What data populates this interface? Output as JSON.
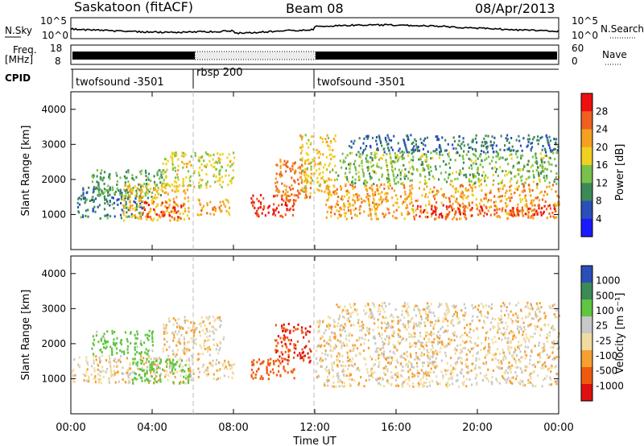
{
  "header": {
    "station": "Saskatoon (fitACF)",
    "beam": "Beam 08",
    "date": "08/Apr/2013"
  },
  "top_panels": {
    "nsky_label": "N.Sky",
    "nsky_ticks": [
      "10^5",
      "10^0"
    ],
    "nsearch_label": "N.Search",
    "nsearch_ticks": [
      "10^5",
      "10^0"
    ],
    "freq_label": "Freq.",
    "freq_unit": "[MHz]",
    "freq_ticks": [
      "18",
      "8"
    ],
    "nave_label": "Nave",
    "nave_ticks": [
      "60",
      "0"
    ],
    "cpid_label": "CPID",
    "cpid_segments": [
      {
        "label": "twofsound -3501",
        "start_h": 0,
        "end_h": 6
      },
      {
        "label": "rbsp 200",
        "start_h": 6,
        "end_h": 12
      },
      {
        "label": "twofsound -3501",
        "start_h": 12,
        "end_h": 24
      }
    ]
  },
  "xaxis": {
    "title": "Time UT",
    "ticks": [
      "00:00",
      "04:00",
      "08:00",
      "12:00",
      "16:00",
      "20:00",
      "00:00"
    ]
  },
  "colors": {
    "power": [
      "#1a1aff",
      "#2a4fb8",
      "#3c8a58",
      "#79c14a",
      "#f0d020",
      "#f5a020",
      "#f06020",
      "#ee1010"
    ],
    "velocity": [
      "#e01010",
      "#f05a10",
      "#f5a030",
      "#f0dca0",
      "#c8c8c8",
      "#5ec640",
      "#3c8a58",
      "#2a4fb8"
    ]
  },
  "chart_data": [
    {
      "type": "heatmap",
      "ylabel": "Slant Range [km]",
      "xlabel": "Time UT",
      "xlim": [
        0,
        24
      ],
      "ylim": [
        0,
        4500
      ],
      "yticks": [
        1000,
        2000,
        3000,
        4000
      ],
      "colorbar": {
        "label": "Power [dB]",
        "ticks": [
          "28",
          "24",
          "20",
          "16",
          "12",
          "8",
          "4"
        ],
        "range": [
          0,
          32
        ]
      },
      "regions": [
        {
          "t": [
            0.3,
            3.5
          ],
          "r": [
            900,
            1800
          ],
          "v": 9
        },
        {
          "t": [
            1.0,
            4.5
          ],
          "r": [
            1500,
            2300
          ],
          "v": 12
        },
        {
          "t": [
            2.5,
            5.8
          ],
          "r": [
            850,
            1900
          ],
          "v": 20
        },
        {
          "t": [
            3.5,
            5.5
          ],
          "r": [
            900,
            1400
          ],
          "v": 27
        },
        {
          "t": [
            4.5,
            8.0
          ],
          "r": [
            1800,
            2800
          ],
          "v": 17
        },
        {
          "t": [
            6.2,
            7.8
          ],
          "r": [
            1000,
            1500
          ],
          "v": 22
        },
        {
          "t": [
            8.8,
            11.0
          ],
          "r": [
            950,
            1600
          ],
          "v": 29
        },
        {
          "t": [
            10.0,
            11.8
          ],
          "r": [
            1400,
            2600
          ],
          "v": 24
        },
        {
          "t": [
            11.2,
            13.0
          ],
          "r": [
            1600,
            3300
          ],
          "v": 19
        },
        {
          "t": [
            12.5,
            24.0
          ],
          "r": [
            900,
            1900
          ],
          "v": 22
        },
        {
          "t": [
            13.0,
            24.0
          ],
          "r": [
            1900,
            2800
          ],
          "v": 14
        },
        {
          "t": [
            13.5,
            24.0
          ],
          "r": [
            2800,
            3300
          ],
          "v": 8
        },
        {
          "t": [
            17.0,
            24.0
          ],
          "r": [
            950,
            1300
          ],
          "v": 28
        }
      ]
    },
    {
      "type": "heatmap",
      "ylabel": "Slant Range [km]",
      "xlabel": "Time UT",
      "xlim": [
        0,
        24
      ],
      "ylim": [
        0,
        4500
      ],
      "yticks": [
        1000,
        2000,
        3000,
        4000
      ],
      "colorbar": {
        "label": "Velocity [m s⁻¹]",
        "ticks": [
          "1000",
          "500",
          "100",
          "25",
          "-25",
          "-100",
          "-500",
          "-1000"
        ],
        "range": [
          -1000,
          1000
        ]
      },
      "regions": [
        {
          "t": [
            0.0,
            6.0
          ],
          "r": [
            900,
            1700
          ],
          "v": 0
        },
        {
          "t": [
            1.0,
            4.0
          ],
          "r": [
            1700,
            2400
          ],
          "v": 150
        },
        {
          "t": [
            3.0,
            5.8
          ],
          "r": [
            900,
            1600
          ],
          "v": 200
        },
        {
          "t": [
            4.5,
            7.5
          ],
          "r": [
            1700,
            2800
          ],
          "v": 0
        },
        {
          "t": [
            6.2,
            8.0
          ],
          "r": [
            1000,
            1600
          ],
          "v": 0
        },
        {
          "t": [
            8.8,
            11.0
          ],
          "r": [
            1000,
            1600
          ],
          "v": -300
        },
        {
          "t": [
            10.0,
            11.8
          ],
          "r": [
            1500,
            2600
          ],
          "v": -500
        },
        {
          "t": [
            12.0,
            24.0
          ],
          "r": [
            800,
            2800
          ],
          "v": 0
        },
        {
          "t": [
            13.0,
            24.0
          ],
          "r": [
            2800,
            3200
          ],
          "v": 0
        }
      ]
    }
  ]
}
